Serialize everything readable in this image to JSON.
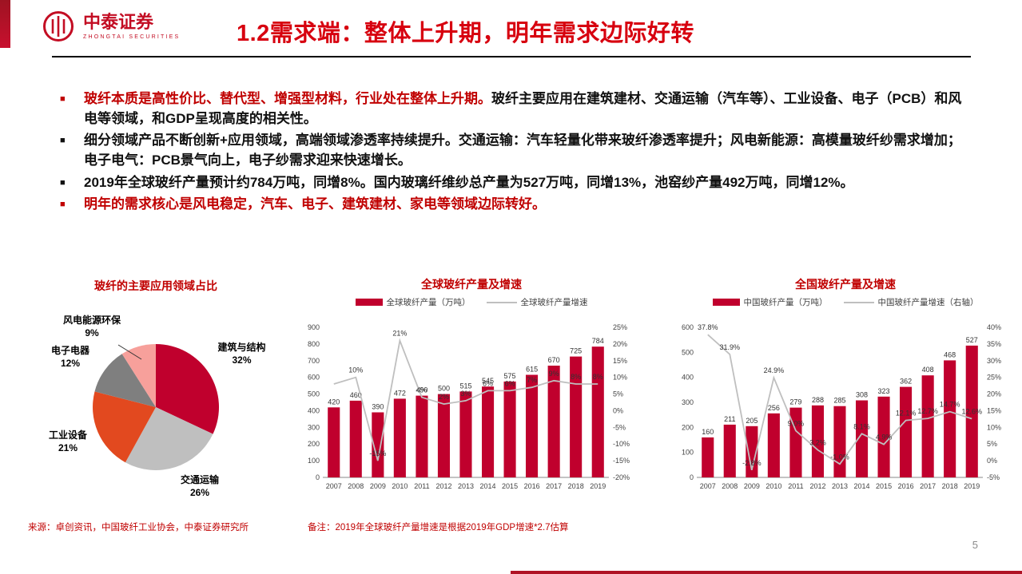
{
  "header": {
    "logo_name": "中泰证券",
    "logo_subtitle": "ZHONGTAI SECURITIES",
    "title": "1.2需求端：整体上升期，明年需求边际好转"
  },
  "colors": {
    "brand_red": "#c30d23",
    "title_red": "#d7000f",
    "bar_red": "#c0002d",
    "line_gray": "#bfbfbf"
  },
  "bullets": [
    {
      "marker_color": "#c00000",
      "segments": [
        {
          "text": "玻纤本质是高性价比、替代型、增强型材料，行业处在整体上升期。",
          "color": "#c00000"
        },
        {
          "text": "玻纤主要应用在建筑建材、交通运输（汽车等）、工业设备、电子（PCB）和风电等领域，和GDP呈现高度的相关性。",
          "color": "#111111"
        }
      ]
    },
    {
      "marker_color": "#111111",
      "segments": [
        {
          "text": "细分领域产品不断创新+应用领域，高端领域渗透率持续提升。交通运输：汽车轻量化带来玻纤渗透率提升；风电新能源：高模量玻纤纱需求增加；电子电气：PCB景气向上，电子纱需求迎来快速增长。",
          "color": "#111111"
        }
      ]
    },
    {
      "marker_color": "#111111",
      "segments": [
        {
          "text": "2019年全球玻纤产量预计约784万吨，同增8%。国内玻璃纤维纱总产量为527万吨，同增13%，池窑纱产量492万吨，同增12%。",
          "color": "#111111"
        }
      ]
    },
    {
      "marker_color": "#c00000",
      "segments": [
        {
          "text": "明年的需求核心是风电稳定，汽车、电子、建筑建材、家电等领域边际转好。",
          "color": "#c00000"
        }
      ]
    }
  ],
  "footer": {
    "source": "来源：卓创资讯，中国玻纤工业协会，中泰证券研究所",
    "note": "备注：2019年全球玻纤产量增速是根据2019年GDP增速*2.7估算",
    "page_number": "5"
  },
  "chart_data": [
    {
      "type": "pie",
      "title": "玻纤的主要应用领域占比",
      "labels": [
        "建筑与结构",
        "交通运输",
        "工业设备",
        "电子电器",
        "风电能源环保"
      ],
      "values": [
        32,
        26,
        21,
        12,
        9
      ],
      "pct_labels": [
        "32%",
        "26%",
        "21%",
        "12%",
        "9%"
      ],
      "colors": [
        "#c0002d",
        "#bfbfbf",
        "#e2491f",
        "#7f7f7f",
        "#f7a09b"
      ]
    },
    {
      "type": "bar-line",
      "title": "全球玻纤产量及增速",
      "legend": [
        "全球玻纤产量（万吨）",
        "全球玻纤产量增速"
      ],
      "categories": [
        "2007",
        "2008",
        "2009",
        "2010",
        "2011",
        "2012",
        "2013",
        "2014",
        "2015",
        "2016",
        "2017",
        "2018",
        "2019"
      ],
      "bar_values": [
        420,
        460,
        390,
        472,
        490,
        500,
        515,
        545,
        575,
        615,
        670,
        725,
        784
      ],
      "bar_labels": [
        "420",
        "460",
        "390",
        "472",
        "490",
        "500",
        "515",
        "545",
        "575",
        "615",
        "670",
        "725",
        "784"
      ],
      "line_values": [
        8,
        10,
        -15,
        21,
        4,
        2,
        3,
        6,
        6,
        7,
        9,
        8,
        8
      ],
      "line_labels": [
        "",
        "10%",
        "-15%",
        "21%",
        "4%",
        "2%",
        "3%",
        "6%",
        "6%",
        "7%",
        "9%",
        "8%",
        "8%"
      ],
      "bar_color": "#c0002d",
      "line_color": "#bfbfbf",
      "y_left": {
        "min": 0,
        "max": 900,
        "step": 100
      },
      "y_right": {
        "min": -20,
        "max": 25,
        "step": 5,
        "suffix": "%"
      }
    },
    {
      "type": "bar-line",
      "title": "全国玻纤产量及增速",
      "legend": [
        "中国玻纤产量（万吨）",
        "中国玻纤产量增速（右轴）"
      ],
      "categories": [
        "2007",
        "2008",
        "2009",
        "2010",
        "2011",
        "2012",
        "2013",
        "2014",
        "2015",
        "2016",
        "2017",
        "2018",
        "2019"
      ],
      "bar_values": [
        160,
        211,
        205,
        256,
        279,
        288,
        285,
        308,
        323,
        362,
        408,
        468,
        527
      ],
      "bar_labels": [
        "160",
        "211",
        "205",
        "256",
        "279",
        "288",
        "285",
        "308",
        "323",
        "362",
        "408",
        "468",
        "527"
      ],
      "line_values": [
        37.8,
        31.9,
        -2.8,
        24.9,
        9.0,
        3.2,
        -1.0,
        8.1,
        4.9,
        12.1,
        12.7,
        14.7,
        12.6
      ],
      "line_labels": [
        "37.8%",
        "31.9%",
        "-2.8%",
        "24.9%",
        "9.0%",
        "3.2%",
        "-1.0%",
        "8.1%",
        "4.9%",
        "12.1%",
        "12.7%",
        "14.7%",
        "12.6%"
      ],
      "bar_color": "#c0002d",
      "line_color": "#bfbfbf",
      "y_left": {
        "min": 0,
        "max": 600,
        "step": 100
      },
      "y_right": {
        "min": -5,
        "max": 40,
        "step": 5,
        "suffix": "%"
      }
    }
  ]
}
